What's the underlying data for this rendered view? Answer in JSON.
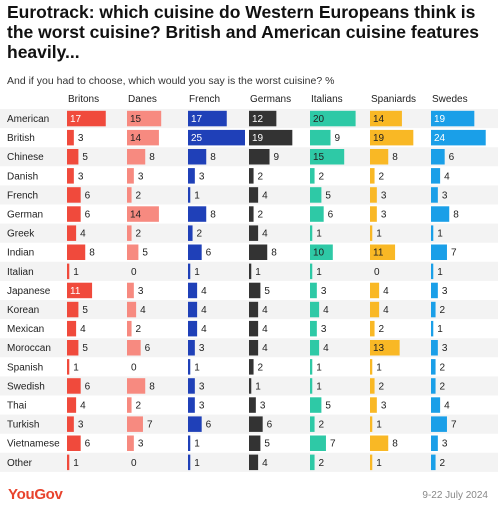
{
  "title": "Eurotrack: which cuisine do Western Europeans think is the worst cuisine? British and American cuisine features heavily...",
  "subtitle": "And if you had to choose, which would you say is the worst cuisine? %",
  "footer": {
    "brand": "YouGov",
    "date": "9-22 July 2024"
  },
  "chart_data": {
    "type": "bar",
    "layout": "small-multiples-horizontal",
    "categories": [
      "American",
      "British",
      "Chinese",
      "Danish",
      "French",
      "German",
      "Greek",
      "Indian",
      "Italian",
      "Japanese",
      "Korean",
      "Mexican",
      "Moroccan",
      "Spanish",
      "Swedish",
      "Thai",
      "Turkish",
      "Vietnamese",
      "Other"
    ],
    "series": [
      {
        "name": "Britons",
        "color": "#f04a3c",
        "light": "#f7a39b",
        "values": [
          17,
          3,
          5,
          3,
          6,
          6,
          4,
          8,
          1,
          11,
          5,
          4,
          5,
          1,
          6,
          4,
          3,
          6,
          1
        ]
      },
      {
        "name": "Danes",
        "color": "#f78a80",
        "light": "#fbc6c0",
        "values": [
          15,
          14,
          8,
          3,
          2,
          14,
          2,
          5,
          0,
          3,
          4,
          2,
          6,
          0,
          8,
          2,
          7,
          3,
          0
        ]
      },
      {
        "name": "French",
        "color": "#1f40b8",
        "light": "#8fa0dc",
        "values": [
          17,
          25,
          8,
          3,
          1,
          8,
          2,
          6,
          1,
          4,
          4,
          4,
          3,
          1,
          3,
          3,
          6,
          1,
          1
        ]
      },
      {
        "name": "Germans",
        "color": "#333333",
        "light": "#999999",
        "values": [
          12,
          19,
          9,
          2,
          4,
          2,
          4,
          8,
          1,
          5,
          4,
          4,
          4,
          2,
          1,
          3,
          6,
          5,
          4
        ]
      },
      {
        "name": "Italians",
        "color": "#2ec9a6",
        "light": "#97e4d2",
        "values": [
          20,
          9,
          15,
          2,
          5,
          6,
          1,
          10,
          1,
          3,
          4,
          3,
          4,
          1,
          1,
          5,
          2,
          7,
          2
        ]
      },
      {
        "name": "Spaniards",
        "color": "#f9b825",
        "light": "#fcdb92",
        "values": [
          14,
          19,
          8,
          2,
          3,
          3,
          1,
          11,
          0,
          4,
          4,
          2,
          13,
          1,
          2,
          3,
          1,
          8,
          1
        ]
      },
      {
        "name": "Swedes",
        "color": "#1a9fe8",
        "light": "#8ccff3",
        "values": [
          19,
          24,
          6,
          4,
          3,
          8,
          1,
          7,
          1,
          3,
          2,
          1,
          3,
          2,
          2,
          4,
          7,
          3,
          2
        ]
      }
    ],
    "xlim": [
      0,
      25
    ],
    "grid": false,
    "legend": "none"
  }
}
